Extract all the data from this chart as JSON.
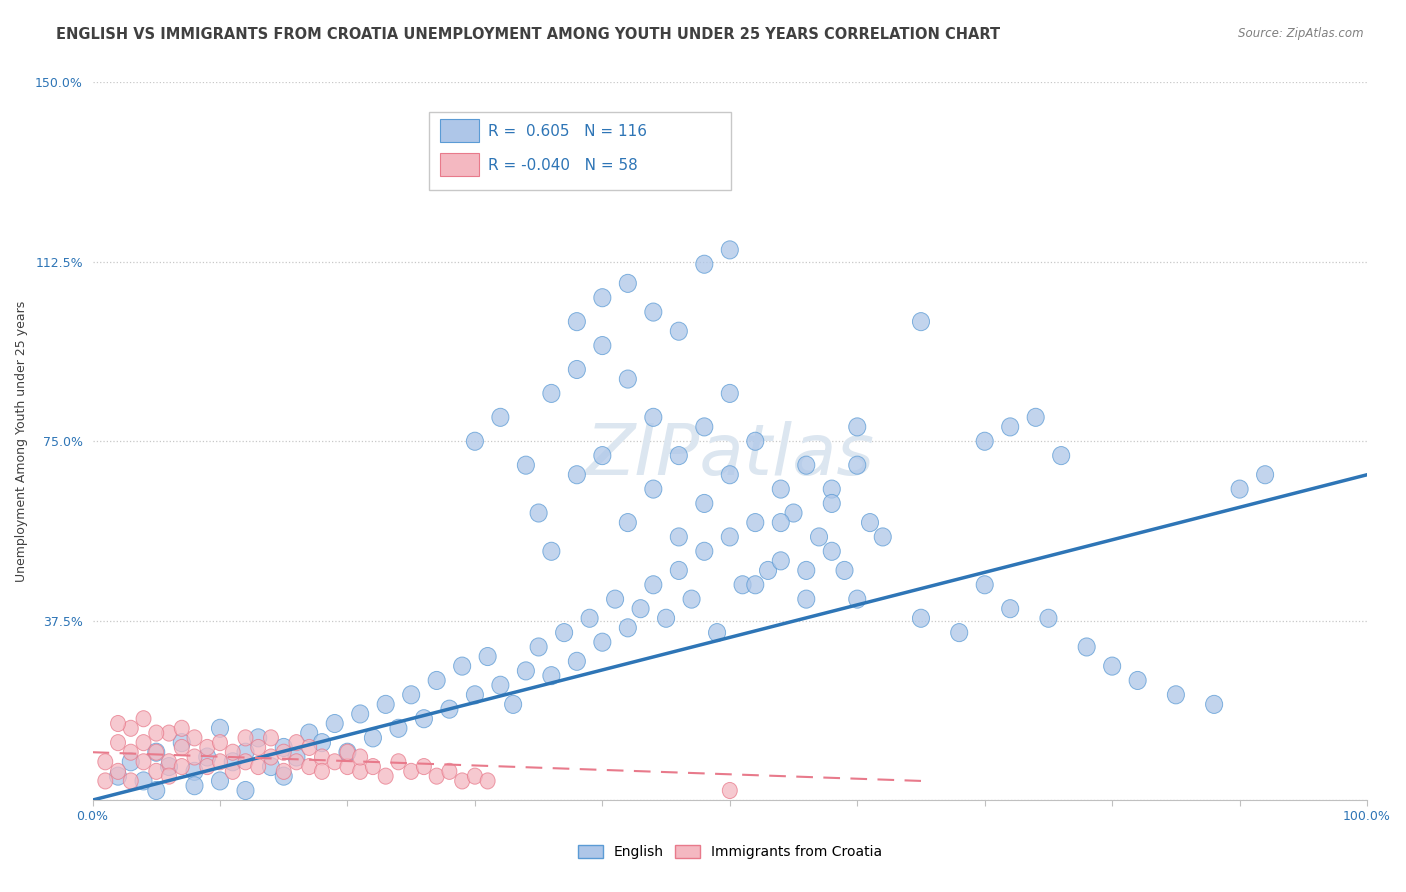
{
  "title": "ENGLISH VS IMMIGRANTS FROM CROATIA UNEMPLOYMENT AMONG YOUTH UNDER 25 YEARS CORRELATION CHART",
  "source": "Source: ZipAtlas.com",
  "ylabel": "Unemployment Among Youth under 25 years",
  "xlim": [
    0.0,
    1.0
  ],
  "ylim": [
    0.0,
    1.5
  ],
  "yticks": [
    0.0,
    0.375,
    0.75,
    1.125,
    1.5
  ],
  "ytick_labels": [
    "",
    "37.5%",
    "75.0%",
    "112.5%",
    "150.0%"
  ],
  "english_color": "#aec6e8",
  "english_edge_color": "#5b9bd5",
  "croatia_color": "#f4b8c1",
  "croatia_edge_color": "#e87a8b",
  "trendline_english_color": "#2e75b6",
  "trendline_croatia_color": "#e87a8b",
  "legend_R_english": "0.605",
  "legend_N_english": "116",
  "legend_R_croatia": "-0.040",
  "legend_N_croatia": "58",
  "watermark": "ZIPatlas",
  "english_points_x": [
    0.02,
    0.03,
    0.04,
    0.05,
    0.06,
    0.07,
    0.08,
    0.09,
    0.1,
    0.11,
    0.12,
    0.13,
    0.14,
    0.15,
    0.16,
    0.17,
    0.18,
    0.19,
    0.2,
    0.21,
    0.22,
    0.23,
    0.24,
    0.25,
    0.26,
    0.27,
    0.28,
    0.29,
    0.3,
    0.31,
    0.32,
    0.33,
    0.34,
    0.35,
    0.36,
    0.37,
    0.38,
    0.39,
    0.4,
    0.41,
    0.42,
    0.43,
    0.44,
    0.45,
    0.46,
    0.47,
    0.48,
    0.49,
    0.5,
    0.51,
    0.52,
    0.53,
    0.54,
    0.55,
    0.56,
    0.57,
    0.58,
    0.59,
    0.6,
    0.61,
    0.35,
    0.36,
    0.38,
    0.4,
    0.42,
    0.44,
    0.46,
    0.48,
    0.5,
    0.52,
    0.54,
    0.56,
    0.58,
    0.6,
    0.62,
    0.3,
    0.32,
    0.34,
    0.36,
    0.38,
    0.4,
    0.42,
    0.44,
    0.46,
    0.48,
    0.5,
    0.52,
    0.54,
    0.56,
    0.58,
    0.6,
    0.38,
    0.4,
    0.42,
    0.44,
    0.46,
    0.48,
    0.5,
    0.65,
    0.7,
    0.72,
    0.74,
    0.76,
    0.9,
    0.92,
    0.05,
    0.08,
    0.1,
    0.12,
    0.15,
    0.65,
    0.68,
    0.7,
    0.72,
    0.75,
    0.78,
    0.8,
    0.82,
    0.85,
    0.88
  ],
  "english_points_y": [
    0.05,
    0.08,
    0.04,
    0.1,
    0.07,
    0.12,
    0.06,
    0.09,
    0.15,
    0.08,
    0.1,
    0.13,
    0.07,
    0.11,
    0.09,
    0.14,
    0.12,
    0.16,
    0.1,
    0.18,
    0.13,
    0.2,
    0.15,
    0.22,
    0.17,
    0.25,
    0.19,
    0.28,
    0.22,
    0.3,
    0.24,
    0.2,
    0.27,
    0.32,
    0.26,
    0.35,
    0.29,
    0.38,
    0.33,
    0.42,
    0.36,
    0.4,
    0.45,
    0.38,
    0.48,
    0.42,
    0.52,
    0.35,
    0.55,
    0.45,
    0.58,
    0.48,
    0.5,
    0.6,
    0.42,
    0.55,
    0.65,
    0.48,
    0.7,
    0.58,
    0.6,
    0.52,
    0.68,
    0.72,
    0.58,
    0.65,
    0.55,
    0.62,
    0.68,
    0.45,
    0.58,
    0.48,
    0.52,
    0.42,
    0.55,
    0.75,
    0.8,
    0.7,
    0.85,
    0.9,
    0.95,
    0.88,
    0.8,
    0.72,
    0.78,
    0.85,
    0.75,
    0.65,
    0.7,
    0.62,
    0.78,
    1.0,
    1.05,
    1.08,
    1.02,
    0.98,
    1.12,
    1.15,
    1.0,
    0.75,
    0.78,
    0.8,
    0.72,
    0.65,
    0.68,
    0.02,
    0.03,
    0.04,
    0.02,
    0.05,
    0.38,
    0.35,
    0.45,
    0.4,
    0.38,
    0.32,
    0.28,
    0.25,
    0.22,
    0.2
  ],
  "croatia_points_x": [
    0.01,
    0.02,
    0.02,
    0.03,
    0.03,
    0.04,
    0.04,
    0.05,
    0.05,
    0.06,
    0.06,
    0.07,
    0.07,
    0.08,
    0.08,
    0.09,
    0.09,
    0.1,
    0.1,
    0.11,
    0.11,
    0.12,
    0.12,
    0.13,
    0.13,
    0.14,
    0.14,
    0.15,
    0.15,
    0.16,
    0.16,
    0.17,
    0.17,
    0.18,
    0.18,
    0.19,
    0.2,
    0.2,
    0.21,
    0.21,
    0.22,
    0.23,
    0.24,
    0.25,
    0.26,
    0.27,
    0.28,
    0.29,
    0.3,
    0.31,
    0.5,
    0.01,
    0.02,
    0.03,
    0.04,
    0.05,
    0.06,
    0.07
  ],
  "croatia_points_y": [
    0.08,
    0.12,
    0.06,
    0.1,
    0.15,
    0.08,
    0.12,
    0.06,
    0.1,
    0.08,
    0.14,
    0.07,
    0.11,
    0.09,
    0.13,
    0.07,
    0.11,
    0.08,
    0.12,
    0.06,
    0.1,
    0.08,
    0.13,
    0.07,
    0.11,
    0.09,
    0.13,
    0.06,
    0.1,
    0.08,
    0.12,
    0.07,
    0.11,
    0.09,
    0.06,
    0.08,
    0.07,
    0.1,
    0.06,
    0.09,
    0.07,
    0.05,
    0.08,
    0.06,
    0.07,
    0.05,
    0.06,
    0.04,
    0.05,
    0.04,
    0.02,
    0.04,
    0.16,
    0.04,
    0.17,
    0.14,
    0.05,
    0.15
  ],
  "english_trend_x": [
    0.0,
    1.0
  ],
  "english_trend_y": [
    0.0,
    0.68
  ],
  "croatia_trend_x": [
    0.0,
    0.65
  ],
  "croatia_trend_y": [
    0.1,
    0.04
  ],
  "background_color": "#ffffff",
  "grid_color": "#c8c8c8",
  "title_fontsize": 10.5,
  "axis_label_fontsize": 9,
  "tick_fontsize": 9,
  "legend_fontsize": 12,
  "watermark_color": "#dce6f0",
  "axis_label_color": "#404040",
  "tick_color": "#2e75b6",
  "title_color": "#404040",
  "source_color": "#808080"
}
